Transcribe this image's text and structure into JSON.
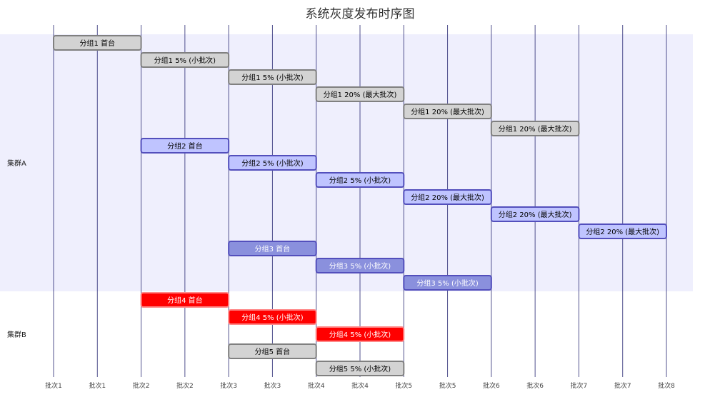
{
  "chart_data": {
    "type": "gantt",
    "title": "系统灰度发布时序图",
    "x_ticks": [
      "批次1",
      "批次1",
      "批次2",
      "批次2",
      "批次3",
      "批次3",
      "批次4",
      "批次4",
      "批次5",
      "批次5",
      "批次6",
      "批次6",
      "批次7",
      "批次7",
      "批次8"
    ],
    "x_range": [
      1,
      8
    ],
    "grid": true,
    "sections": [
      {
        "name": "集群A",
        "rows": 15
      },
      {
        "name": "集群B",
        "rows": 5
      }
    ],
    "tasks": [
      {
        "label": "分组1 首台",
        "start": 1,
        "end": 2,
        "style": "done"
      },
      {
        "label": "分组1 5% (小批次)",
        "start": 2,
        "end": 3,
        "style": "done"
      },
      {
        "label": "分组1 5% (小批次)",
        "start": 3,
        "end": 4,
        "style": "done"
      },
      {
        "label": "分组1 20% (最大批次)",
        "start": 4,
        "end": 5,
        "style": "done"
      },
      {
        "label": "分组1 20% (最大批次)",
        "start": 5,
        "end": 6,
        "style": "done"
      },
      {
        "label": "分组1 20% (最大批次)",
        "start": 6,
        "end": 7,
        "style": "done"
      },
      {
        "label": "分组2 首台",
        "start": 2,
        "end": 3,
        "style": "normal"
      },
      {
        "label": "分组2 5% (小批次)",
        "start": 3,
        "end": 4,
        "style": "normal"
      },
      {
        "label": "分组2 5% (小批次)",
        "start": 4,
        "end": 5,
        "style": "normal"
      },
      {
        "label": "分组2 20% (最大批次)",
        "start": 5,
        "end": 6,
        "style": "normal"
      },
      {
        "label": "分组2 20% (最大批次)",
        "start": 6,
        "end": 7,
        "style": "normal"
      },
      {
        "label": "分组2 20% (最大批次)",
        "start": 7,
        "end": 8,
        "style": "normal"
      },
      {
        "label": "分组3 首台",
        "start": 3,
        "end": 4,
        "style": "active"
      },
      {
        "label": "分组3 5% (小批次)",
        "start": 4,
        "end": 5,
        "style": "active"
      },
      {
        "label": "分组3 5% (小批次)",
        "start": 5,
        "end": 6,
        "style": "active"
      },
      {
        "label": "分组4 首台",
        "start": 2,
        "end": 3,
        "style": "crit"
      },
      {
        "label": "分组4 5% (小批次)",
        "start": 3,
        "end": 4,
        "style": "crit"
      },
      {
        "label": "分组4 5% (小批次)",
        "start": 4,
        "end": 5,
        "style": "crit"
      },
      {
        "label": "分组5 首台",
        "start": 3,
        "end": 4,
        "style": "done"
      },
      {
        "label": "分组5 5% (小批次)",
        "start": 4,
        "end": 5,
        "style": "done"
      }
    ],
    "colors": {
      "done": {
        "fill": "#d3d3d3",
        "stroke": "#808080",
        "text": "#000000"
      },
      "normal": {
        "fill": "#bfc4ff",
        "stroke": "#534fbc",
        "text": "#000000"
      },
      "active": {
        "fill": "#8a90dd",
        "stroke": "#534fbc",
        "text": "#ffffff"
      },
      "crit": {
        "fill": "#ff0000",
        "stroke": "#ff8888",
        "text": "#ffffff"
      },
      "section_a_bg": "#efeffd",
      "grid": "#33337a"
    }
  }
}
